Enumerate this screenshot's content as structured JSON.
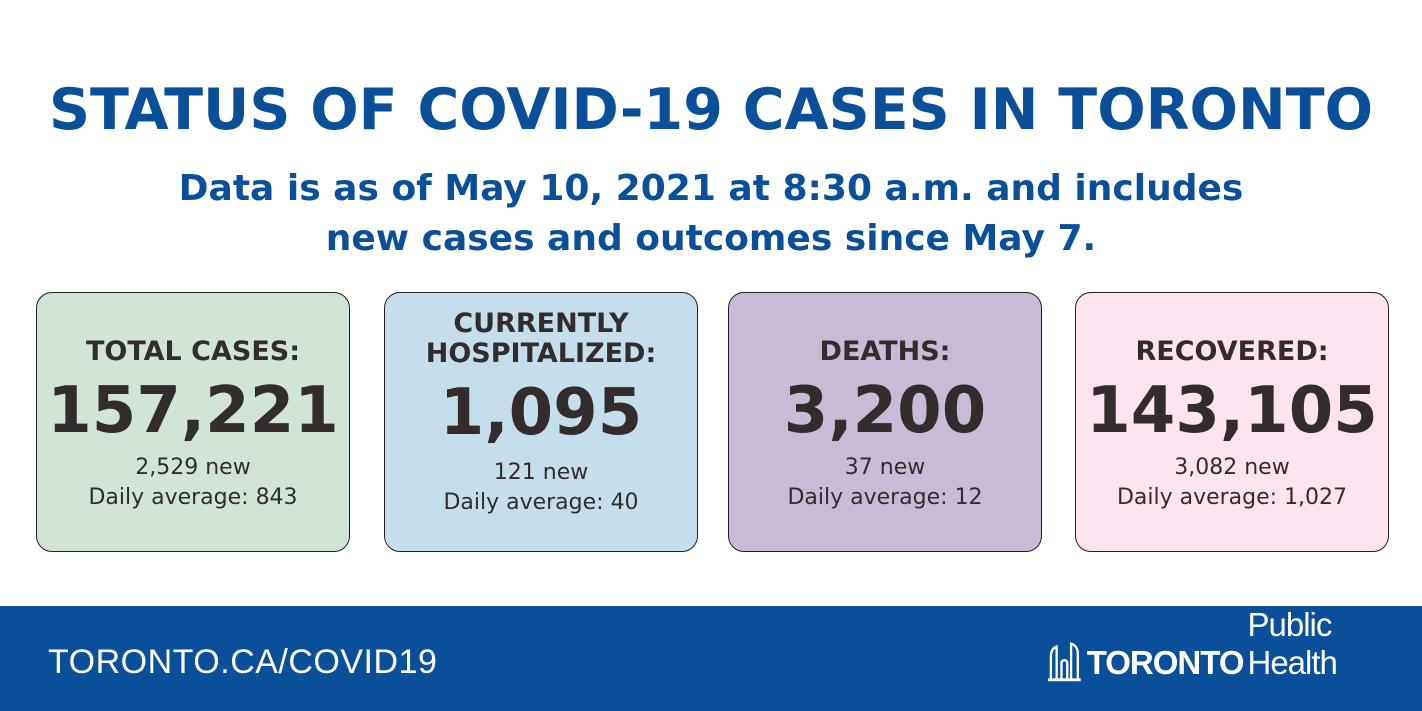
{
  "header": {
    "title": "STATUS OF COVID-19 CASES IN TORONTO",
    "subtitle_line1": "Data is as of May 10, 2021 at 8:30 a.m. and includes",
    "subtitle_line2": "new cases and outcomes since May 7."
  },
  "cards": [
    {
      "label_line1": "TOTAL CASES:",
      "label_line2": "",
      "value": "157,221",
      "new": "2,529 new",
      "daily": "Daily average: 843",
      "color": "#d1e4d6"
    },
    {
      "label_line1": "CURRENTLY",
      "label_line2": "HOSPITALIZED:",
      "value": "1,095",
      "new": "121 new",
      "daily": "Daily average: 40",
      "color": "#c6deec"
    },
    {
      "label_line1": "DEATHS:",
      "label_line2": "",
      "value": "3,200",
      "new": "37 new",
      "daily": "Daily average: 12",
      "color": "#c9bad6"
    },
    {
      "label_line1": "RECOVERED:",
      "label_line2": "",
      "value": "143,105",
      "new": "3,082 new",
      "daily": "Daily average: 1,027",
      "color": "#fbe4ef"
    }
  ],
  "footer": {
    "url": "TORONTO.CA/COVID19",
    "logo_word": "TORONTO",
    "logo_sub": "Public Health",
    "background": "#0a4f9a"
  },
  "colors": {
    "title": "#0a4f9a",
    "text": "#332c2c"
  }
}
